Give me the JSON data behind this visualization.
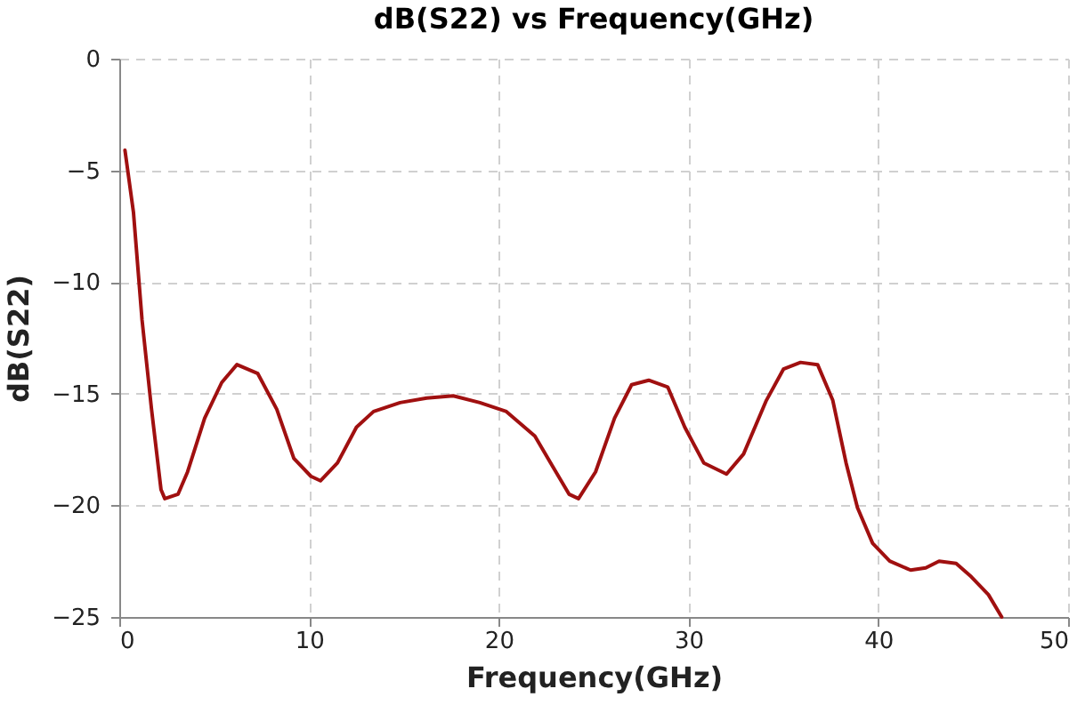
{
  "chart_data": {
    "type": "line",
    "title": "dB(S22) vs Frequency(GHz)",
    "xlabel": "Frequency(GHz)",
    "ylabel": "dB(S22)",
    "x": [
      0.3,
      0.75,
      1.2,
      1.7,
      2.2,
      2.4,
      3.1,
      3.6,
      4.5,
      5.4,
      6.2,
      7.3,
      8.3,
      9.2,
      10.1,
      10.6,
      11.5,
      12.5,
      13.4,
      14.8,
      16.2,
      17.6,
      19.0,
      20.4,
      21.9,
      22.8,
      23.7,
      24.2,
      25.1,
      26.1,
      27.0,
      27.9,
      28.9,
      29.8,
      30.8,
      32.0,
      32.9,
      34.1,
      35.0,
      35.9,
      36.8,
      37.6,
      38.3,
      38.9,
      39.7,
      40.6,
      41.7,
      42.5,
      43.2,
      44.1,
      44.9,
      45.8,
      46.5
    ],
    "series": [
      {
        "color": "#a01010",
        "values": [
          -4.1,
          -6.9,
          -11.7,
          -15.7,
          -19.3,
          -19.7,
          -19.5,
          -18.5,
          -16.1,
          -14.5,
          -13.7,
          -14.1,
          -15.7,
          -17.9,
          -18.7,
          -18.9,
          -18.1,
          -16.5,
          -15.8,
          -15.4,
          -15.2,
          -15.1,
          -15.4,
          -15.8,
          -16.9,
          -18.2,
          -19.5,
          -19.7,
          -18.5,
          -16.1,
          -14.6,
          -14.4,
          -14.7,
          -16.5,
          -18.1,
          -18.6,
          -17.7,
          -15.3,
          -13.9,
          -13.6,
          -13.7,
          -15.3,
          -18.1,
          -20.1,
          -21.7,
          -22.5,
          -22.9,
          -22.8,
          -22.5,
          -22.6,
          -23.2,
          -24.0,
          -25
        ]
      }
    ],
    "xlim": [
      0,
      50
    ],
    "xticks": [
      0,
      10,
      20,
      30,
      40,
      50
    ],
    "ylim": [
      -25,
      0
    ],
    "yticks": [
      -25,
      -20,
      -15,
      -10,
      -5,
      0
    ],
    "grid": true,
    "marker": "none",
    "line_style": "solid",
    "legend": false
  }
}
